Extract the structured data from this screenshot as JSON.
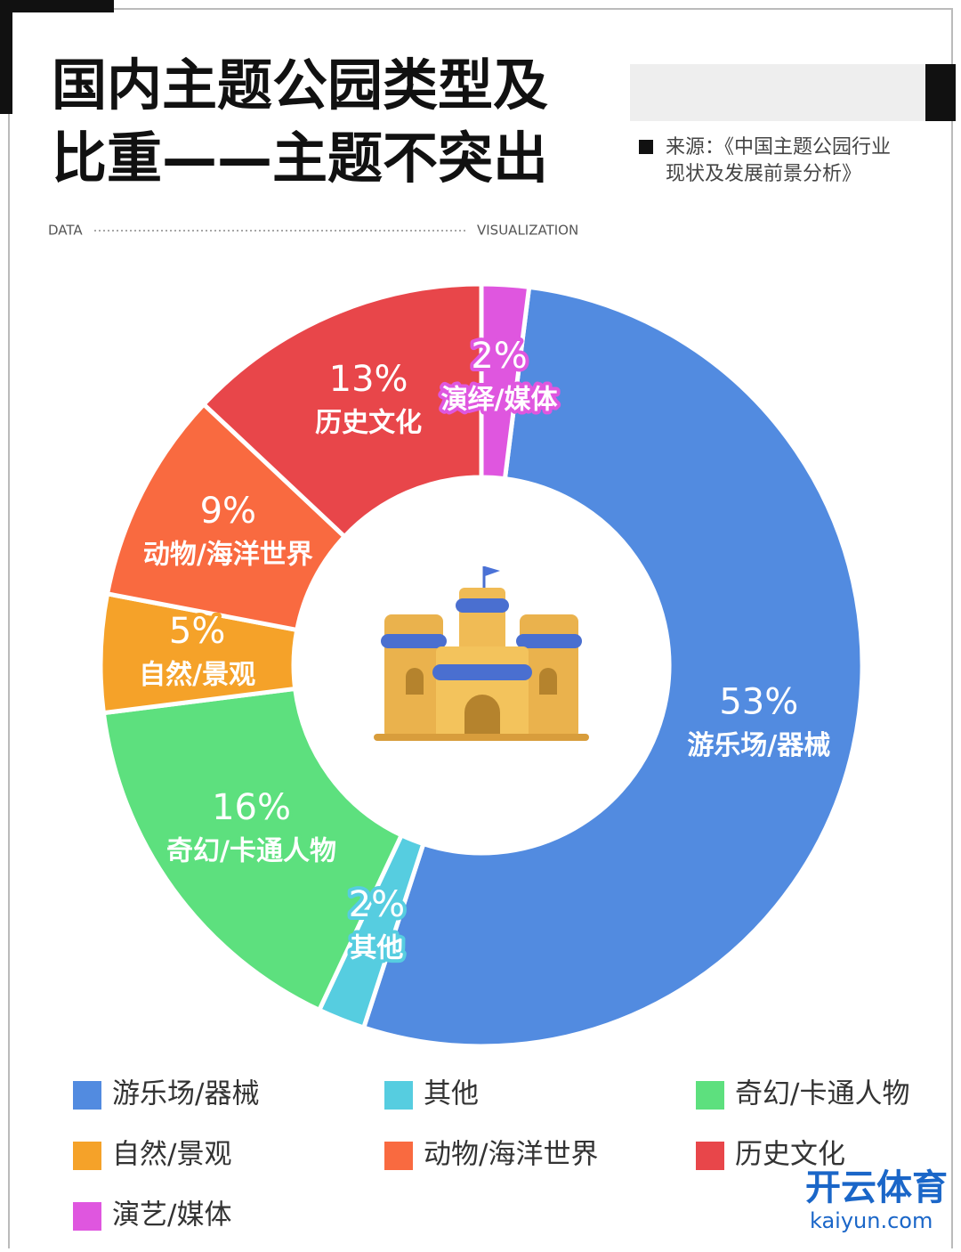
{
  "header": {
    "title_lines": [
      "国内主题公园类型及",
      "比重——主题不突出"
    ],
    "source_lines": [
      "来源：《中国主题公园行业",
      "现状及发展前景分析》"
    ],
    "left_tag": "DATA",
    "right_tag": "VISUALIZATION"
  },
  "chart_data": {
    "type": "donut",
    "categories": [
      "游乐场/器械",
      "其他",
      "奇幻/卡通人物",
      "自然/景观",
      "动物/海洋世界",
      "历史文化",
      "演艺/媒体"
    ],
    "slice_labels": [
      "游乐场/器械",
      "其他",
      "奇幻/卡通人物",
      "自然/景观",
      "动物/海洋世界",
      "历史文化",
      "演绎/媒体"
    ],
    "values": [
      53,
      2,
      16,
      5,
      9,
      13,
      2
    ],
    "value_labels": [
      "53%",
      "2%",
      "16%",
      "5%",
      "9%",
      "13%",
      "2%"
    ],
    "colors": [
      "#528be0",
      "#56cde0",
      "#5de07e",
      "#f5a229",
      "#f96a40",
      "#e8464a",
      "#df56df"
    ]
  },
  "watermark": {
    "name": "开云体育",
    "site": "kaiyun.com"
  }
}
